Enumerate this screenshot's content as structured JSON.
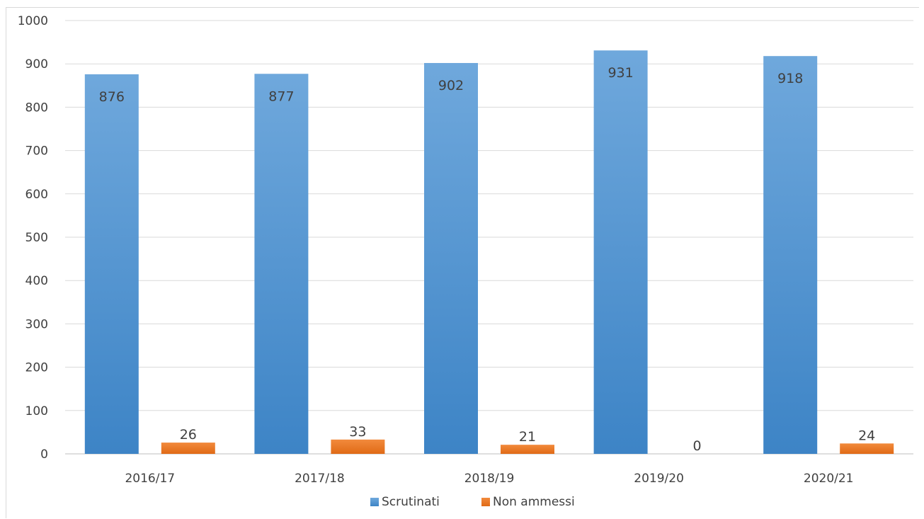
{
  "chart_data": {
    "type": "bar",
    "title": "",
    "xlabel": "",
    "ylabel": "",
    "categories": [
      "2016/17",
      "2017/18",
      "2018/19",
      "2019/20",
      "2020/21"
    ],
    "series": [
      {
        "name": "Scrutinati",
        "values": [
          876,
          877,
          902,
          931,
          918
        ],
        "color": "#5b9bd5"
      },
      {
        "name": "Non ammessi",
        "values": [
          26,
          33,
          21,
          0,
          24
        ],
        "color": "#ed7d31"
      }
    ],
    "ylim": [
      0,
      1000
    ],
    "yticks": [
      0,
      100,
      200,
      300,
      400,
      500,
      600,
      700,
      800,
      900,
      1000
    ],
    "grid": true,
    "legend": "bottom",
    "data_labels": true
  }
}
